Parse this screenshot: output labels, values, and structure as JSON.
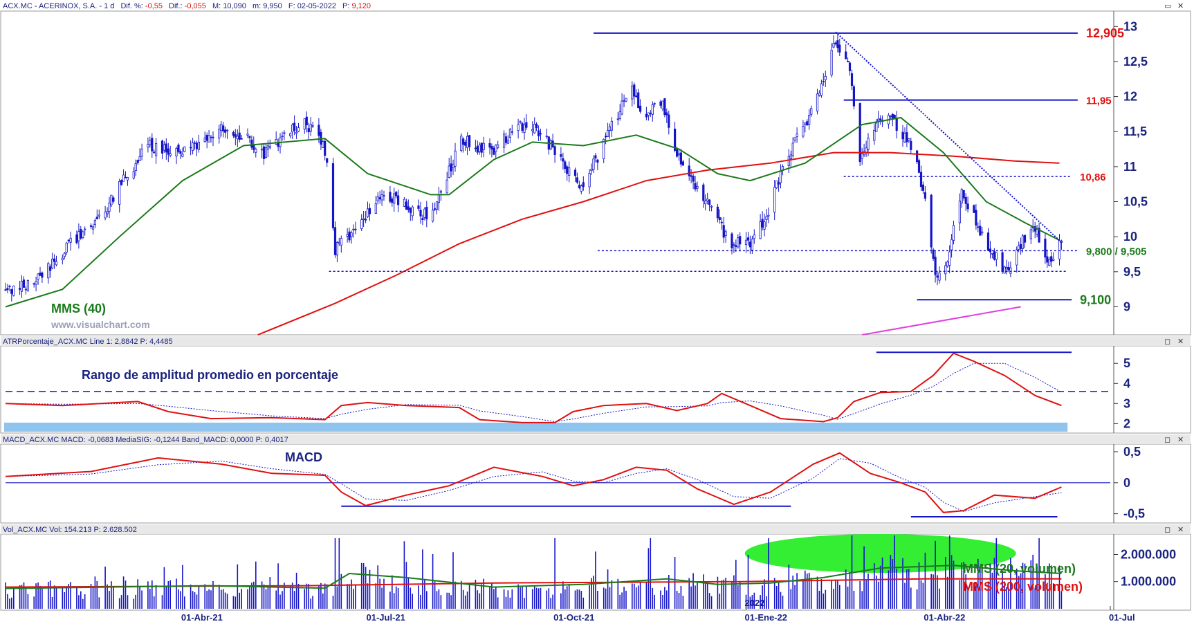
{
  "colors": {
    "axis_text": "#1a237e",
    "candle": "#1414c8",
    "sma40": "#1a7a1a",
    "sma200": "#e01010",
    "atr_fill": "#8fc4ee",
    "magenta": "#e040e0",
    "green_ellipse": "#33ee33"
  },
  "header": {
    "symbol": "ACX.MC - ACERINOX, S.A. -  1 d",
    "dif_pct_label": "Dif. %:",
    "dif_pct": "-0,55",
    "dif_label": "Dif.:",
    "dif": "-0,055",
    "max_label": "M:",
    "max": "10,090",
    "min_label": "m:",
    "min": "9,950",
    "date_label": "F:",
    "date": "02-05-2022",
    "price_label": "P:",
    "price": "9,120"
  },
  "watermark": "www.visualchart.com",
  "window_buttons": {
    "minimize": "▭",
    "restore": "◻",
    "close": "✕"
  },
  "chart_data": [
    {
      "type": "candlestick",
      "panel": "price",
      "x_tick_labels": [
        "01-Abr-21",
        "01-Jul-21",
        "01-Oct-21",
        "01-Ene-22",
        "01-Abr-22",
        "01-Jul"
      ],
      "year_marker": "2022",
      "y_tick_labels": [
        "13",
        "12,5",
        "12",
        "11,5",
        "11",
        "10,5",
        "10",
        "9,5",
        "9"
      ],
      "ylim": [
        8.6,
        13.2
      ],
      "series": [
        {
          "name": "MMS (40)",
          "kind": "sma40"
        },
        {
          "kind": "sma200"
        }
      ],
      "waypoints_close": [
        [
          "2021-01-04",
          9.2
        ],
        [
          "2021-01-20",
          9.4
        ],
        [
          "2021-02-05",
          9.9
        ],
        [
          "2021-02-22",
          10.4
        ],
        [
          "2021-03-05",
          10.9
        ],
        [
          "2021-03-15",
          11.3
        ],
        [
          "2021-03-26",
          11.2
        ],
        [
          "2021-04-08",
          11.3
        ],
        [
          "2021-04-19",
          11.55
        ],
        [
          "2021-04-30",
          11.45
        ],
        [
          "2021-05-11",
          11.2
        ],
        [
          "2021-05-21",
          11.45
        ],
        [
          "2021-05-31",
          11.6
        ],
        [
          "2021-06-07",
          11.5
        ],
        [
          "2021-06-11",
          11.1
        ],
        [
          "2021-06-15",
          9.8
        ],
        [
          "2021-06-25",
          10.1
        ],
        [
          "2021-07-08",
          10.6
        ],
        [
          "2021-07-20",
          10.45
        ],
        [
          "2021-07-30",
          10.3
        ],
        [
          "2021-08-06",
          10.6
        ],
        [
          "2021-08-16",
          11.4
        ],
        [
          "2021-08-31",
          11.2
        ],
        [
          "2021-09-13",
          11.6
        ],
        [
          "2021-09-24",
          11.5
        ],
        [
          "2021-10-06",
          11.0
        ],
        [
          "2021-10-15",
          10.7
        ],
        [
          "2021-10-29",
          11.6
        ],
        [
          "2021-11-08",
          12.1
        ],
        [
          "2021-11-15",
          11.7
        ],
        [
          "2021-11-22",
          11.95
        ],
        [
          "2021-11-29",
          11.3
        ],
        [
          "2021-12-06",
          10.8
        ],
        [
          "2021-12-13",
          10.6
        ],
        [
          "2021-12-20",
          10.2
        ],
        [
          "2021-12-27",
          9.9
        ],
        [
          "2022-01-04",
          9.9
        ],
        [
          "2022-01-12",
          10.2
        ],
        [
          "2022-01-21",
          11.0
        ],
        [
          "2022-02-01",
          11.6
        ],
        [
          "2022-02-10",
          12.2
        ],
        [
          "2022-02-16",
          12.8
        ],
        [
          "2022-02-23",
          12.4
        ],
        [
          "2022-02-28",
          11.0
        ],
        [
          "2022-03-03",
          11.3
        ],
        [
          "2022-03-10",
          11.7
        ],
        [
          "2022-03-18",
          11.6
        ],
        [
          "2022-03-25",
          11.3
        ],
        [
          "2022-04-01",
          10.6
        ],
        [
          "2022-04-06",
          9.4
        ],
        [
          "2022-04-12",
          9.7
        ],
        [
          "2022-04-19",
          10.7
        ],
        [
          "2022-04-26",
          10.2
        ],
        [
          "2022-05-03",
          9.8
        ],
        [
          "2022-05-11",
          9.5
        ],
        [
          "2022-05-18",
          9.9
        ],
        [
          "2022-05-25",
          10.1
        ],
        [
          "2022-06-01",
          9.6
        ],
        [
          "2022-06-06",
          10.0
        ]
      ],
      "sma40_waypoints": [
        [
          "2021-01-04",
          9.0
        ],
        [
          "2021-02-01",
          9.25
        ],
        [
          "2021-03-01",
          10.0
        ],
        [
          "2021-04-01",
          10.8
        ],
        [
          "2021-05-01",
          11.3
        ],
        [
          "2021-06-10",
          11.4
        ],
        [
          "2021-07-01",
          10.9
        ],
        [
          "2021-08-01",
          10.6
        ],
        [
          "2021-08-10",
          10.6
        ],
        [
          "2021-09-01",
          11.1
        ],
        [
          "2021-09-20",
          11.35
        ],
        [
          "2021-10-15",
          11.3
        ],
        [
          "2021-11-10",
          11.45
        ],
        [
          "2021-12-01",
          11.25
        ],
        [
          "2021-12-20",
          10.9
        ],
        [
          "2022-01-05",
          10.8
        ],
        [
          "2022-02-01",
          11.05
        ],
        [
          "2022-03-01",
          11.6
        ],
        [
          "2022-03-20",
          11.7
        ],
        [
          "2022-04-10",
          11.2
        ],
        [
          "2022-05-01",
          10.5
        ],
        [
          "2022-05-20",
          10.2
        ],
        [
          "2022-06-06",
          9.95
        ]
      ],
      "sma200_waypoints": [
        [
          "2021-05-08",
          8.6
        ],
        [
          "2021-06-15",
          9.05
        ],
        [
          "2021-07-15",
          9.45
        ],
        [
          "2021-08-15",
          9.9
        ],
        [
          "2021-09-15",
          10.25
        ],
        [
          "2021-10-15",
          10.5
        ],
        [
          "2021-11-15",
          10.8
        ],
        [
          "2021-12-15",
          10.95
        ],
        [
          "2022-01-15",
          11.05
        ],
        [
          "2022-02-15",
          11.2
        ],
        [
          "2022-03-15",
          11.2
        ],
        [
          "2022-04-15",
          11.15
        ],
        [
          "2022-05-15",
          11.08
        ],
        [
          "2022-06-06",
          11.05
        ]
      ],
      "levels": [
        {
          "label": "12,905",
          "value": 12.905,
          "style": "solid",
          "start": "2021-10-20",
          "end": "2022-06-15",
          "color": "#e01010"
        },
        {
          "label": "11,95",
          "value": 11.95,
          "style": "solid",
          "start": "2022-02-20",
          "end": "2022-06-15",
          "color": "#e01010"
        },
        {
          "label": "10,86",
          "value": 10.86,
          "style": "dotted",
          "start": "2022-02-20",
          "end": "2022-06-12",
          "color": "#e01010"
        },
        {
          "label": "9,800 / 9,505",
          "value": 9.8,
          "style": "dotted",
          "start": "2021-10-22",
          "end": "2022-06-15",
          "color": "#1a7a1a"
        },
        {
          "label": "",
          "value": 9.505,
          "style": "dotted",
          "start": "2021-06-12",
          "end": "2022-06-10",
          "color": "#1a7a1a"
        },
        {
          "label": "9,100",
          "value": 9.1,
          "style": "solid",
          "start": "2022-03-28",
          "end": "2022-06-12",
          "color": "#1a7a1a"
        }
      ],
      "trendlines": [
        {
          "kind": "down",
          "from": [
            "2022-02-16",
            12.92
          ],
          "to": [
            "2022-06-07",
            9.92
          ],
          "style": "dotted",
          "color": "#1414c8"
        },
        {
          "kind": "up",
          "from": [
            "2022-03-01",
            8.6
          ],
          "to": [
            "2022-05-18",
            9.0
          ],
          "style": "solid",
          "color": "#e040e0"
        }
      ]
    },
    {
      "type": "line",
      "panel": "atr",
      "header": "ATRPorcentaje_ACX.MC  Line 1: 2,8842  P: 4,4485",
      "title": "Rango de amplitud promedio en porcentaje",
      "y_tick_labels": [
        "5",
        "4",
        "3",
        "2"
      ],
      "ylim": [
        1.6,
        5.8
      ],
      "dashed_level": 3.6,
      "top_line": {
        "value": 5.55,
        "start": "2022-03-08",
        "end": "2022-06-12"
      },
      "waypoints": [
        [
          "2021-01-04",
          3.0
        ],
        [
          "2021-02-01",
          2.9
        ],
        [
          "2021-03-10",
          3.1
        ],
        [
          "2021-03-25",
          2.6
        ],
        [
          "2021-04-15",
          2.25
        ],
        [
          "2021-05-15",
          2.3
        ],
        [
          "2021-06-10",
          2.2
        ],
        [
          "2021-06-18",
          2.9
        ],
        [
          "2021-07-01",
          3.05
        ],
        [
          "2021-07-20",
          2.9
        ],
        [
          "2021-08-15",
          2.8
        ],
        [
          "2021-08-25",
          2.2
        ],
        [
          "2021-09-15",
          2.05
        ],
        [
          "2021-10-01",
          2.05
        ],
        [
          "2021-10-10",
          2.6
        ],
        [
          "2021-10-25",
          2.9
        ],
        [
          "2021-11-15",
          3.0
        ],
        [
          "2021-11-30",
          2.65
        ],
        [
          "2021-12-15",
          3.0
        ],
        [
          "2021-12-22",
          3.5
        ],
        [
          "2022-01-05",
          2.9
        ],
        [
          "2022-01-20",
          2.25
        ],
        [
          "2022-02-10",
          2.1
        ],
        [
          "2022-02-17",
          2.3
        ],
        [
          "2022-02-25",
          3.1
        ],
        [
          "2022-03-10",
          3.55
        ],
        [
          "2022-03-25",
          3.6
        ],
        [
          "2022-04-05",
          4.4
        ],
        [
          "2022-04-15",
          5.5
        ],
        [
          "2022-04-25",
          5.1
        ],
        [
          "2022-05-10",
          4.4
        ],
        [
          "2022-05-25",
          3.4
        ],
        [
          "2022-06-07",
          2.9
        ]
      ]
    },
    {
      "type": "line",
      "panel": "macd",
      "header": "MACD_ACX.MC  MACD: -0,0683  MediaSIG: -0,1244  Band_MACD: 0,0000  P: 0,4017",
      "title": "MACD",
      "y_tick_labels": [
        "0,5",
        "0",
        "-0,5"
      ],
      "ylim": [
        -0.65,
        0.6
      ],
      "zero_level": 0,
      "support_lines": [
        {
          "value": -0.38,
          "start": "2021-06-18",
          "end": "2022-01-25"
        },
        {
          "value": -0.55,
          "start": "2022-03-25",
          "end": "2022-06-05"
        }
      ],
      "waypoints": [
        [
          "2021-01-04",
          0.1
        ],
        [
          "2021-02-15",
          0.18
        ],
        [
          "2021-03-20",
          0.4
        ],
        [
          "2021-04-20",
          0.3
        ],
        [
          "2021-05-15",
          0.15
        ],
        [
          "2021-06-10",
          0.12
        ],
        [
          "2021-06-18",
          -0.15
        ],
        [
          "2021-06-30",
          -0.37
        ],
        [
          "2021-07-20",
          -0.2
        ],
        [
          "2021-08-10",
          -0.05
        ],
        [
          "2021-09-01",
          0.25
        ],
        [
          "2021-09-25",
          0.1
        ],
        [
          "2021-10-10",
          -0.05
        ],
        [
          "2021-10-25",
          0.05
        ],
        [
          "2021-11-10",
          0.25
        ],
        [
          "2021-11-25",
          0.2
        ],
        [
          "2021-12-10",
          -0.1
        ],
        [
          "2021-12-28",
          -0.35
        ],
        [
          "2022-01-15",
          -0.15
        ],
        [
          "2022-02-05",
          0.3
        ],
        [
          "2022-02-18",
          0.48
        ],
        [
          "2022-03-05",
          0.15
        ],
        [
          "2022-03-20",
          0.0
        ],
        [
          "2022-04-01",
          -0.15
        ],
        [
          "2022-04-10",
          -0.48
        ],
        [
          "2022-04-20",
          -0.45
        ],
        [
          "2022-05-05",
          -0.2
        ],
        [
          "2022-05-25",
          -0.25
        ],
        [
          "2022-06-07",
          -0.07
        ]
      ]
    },
    {
      "type": "bar",
      "panel": "volume",
      "header": "Vol_ACX.MC  Vol: 154.213  P: 2.628.502",
      "y_tick_labels": [
        "2.000.000",
        "1.000.000"
      ],
      "ylim": [
        0,
        2700000
      ],
      "series": [
        {
          "name": "MMS (20, volumen)",
          "kind": "sma20"
        },
        {
          "name": "MMS (200, volumen)",
          "kind": "sma200"
        }
      ],
      "spikes": [
        [
          "2021-06-15",
          2600000
        ],
        [
          "2021-06-17",
          2600000
        ],
        [
          "2021-07-06",
          1600000
        ],
        [
          "2021-10-01",
          2600000
        ],
        [
          "2021-11-17",
          2600000
        ],
        [
          "2021-12-29",
          1800000
        ],
        [
          "2022-01-14",
          2600000
        ],
        [
          "2022-03-02",
          2300000
        ],
        [
          "2022-04-06",
          2500000
        ],
        [
          "2022-05-06",
          2600000
        ],
        [
          "2022-05-27",
          2600000
        ]
      ],
      "sma20_waypoints": [
        [
          "2021-01-04",
          750000
        ],
        [
          "2021-04-15",
          850000
        ],
        [
          "2021-06-10",
          760000
        ],
        [
          "2021-06-22",
          1300000
        ],
        [
          "2021-07-20",
          1150000
        ],
        [
          "2021-09-01",
          800000
        ],
        [
          "2021-10-15",
          900000
        ],
        [
          "2021-11-25",
          1100000
        ],
        [
          "2021-12-20",
          900000
        ],
        [
          "2022-01-15",
          950000
        ],
        [
          "2022-02-10",
          1150000
        ],
        [
          "2022-03-10",
          1500000
        ],
        [
          "2022-04-15",
          1600000
        ],
        [
          "2022-05-15",
          1400000
        ],
        [
          "2022-06-07",
          1300000
        ]
      ],
      "sma200_waypoints": [
        [
          "2021-01-04",
          800000
        ],
        [
          "2021-06-01",
          850000
        ],
        [
          "2021-09-01",
          950000
        ],
        [
          "2022-01-01",
          1000000
        ],
        [
          "2022-04-01",
          1100000
        ],
        [
          "2022-06-07",
          1100000
        ]
      ]
    }
  ]
}
